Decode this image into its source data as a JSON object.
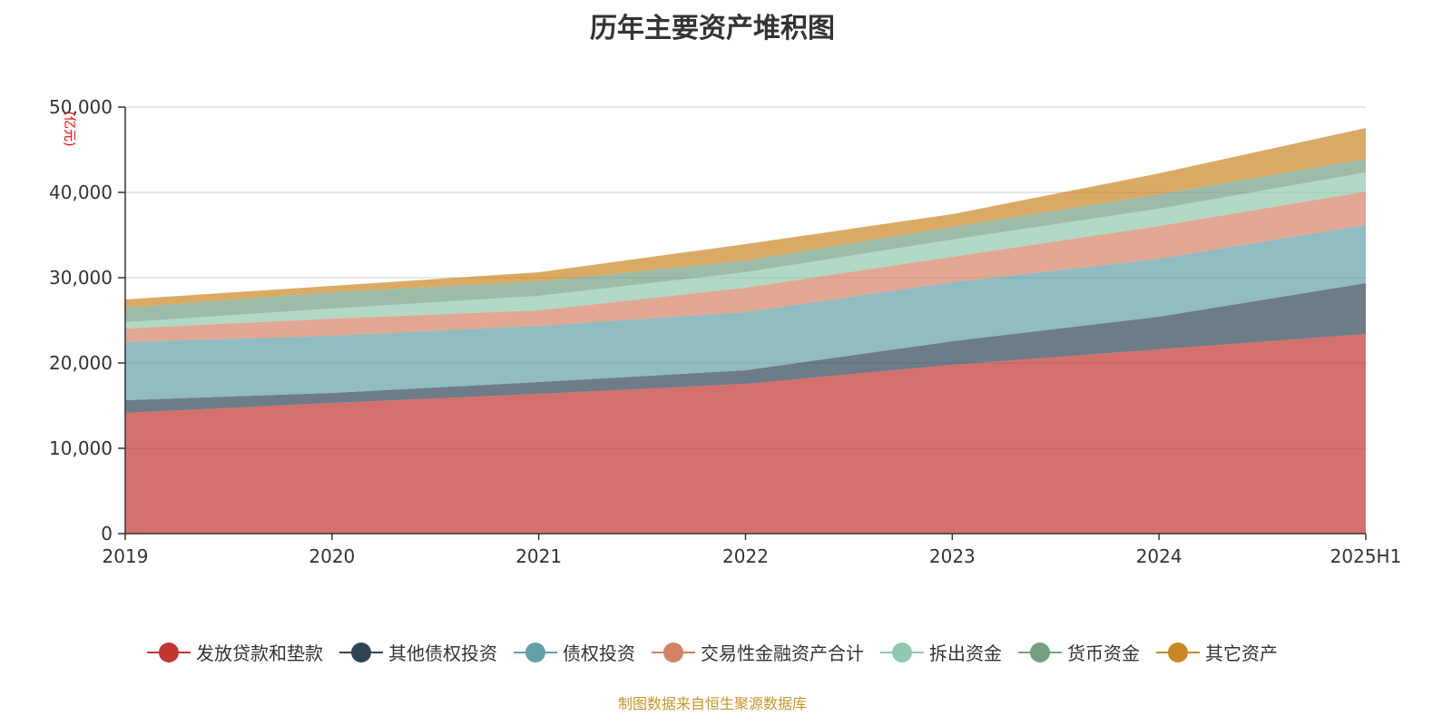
{
  "chart_data": {
    "type": "area",
    "stacked": true,
    "title": "历年主要资产堆积图",
    "ylabel": "(亿元)",
    "xlabel": "",
    "ylim": [
      0,
      50000
    ],
    "yticks": [
      "0",
      "10,000",
      "20,000",
      "30,000",
      "40,000",
      "50,000"
    ],
    "grid": true,
    "legend_position": "bottom",
    "categories": [
      "2019",
      "2020",
      "2021",
      "2022",
      "2023",
      "2024",
      "2025H1"
    ],
    "series": [
      {
        "name": "发放贷款和垫款",
        "color": "#c23531",
        "values": [
          14150,
          15320,
          16380,
          17550,
          19790,
          21600,
          23400
        ]
      },
      {
        "name": "其他债权投资",
        "color": "#2f4554",
        "values": [
          1490,
          1170,
          1390,
          1600,
          2760,
          3830,
          5960
        ]
      },
      {
        "name": "债权投资",
        "color": "#61a0a8",
        "values": [
          6810,
          6700,
          6590,
          6810,
          6920,
          6800,
          6810
        ]
      },
      {
        "name": "交易性金融资产合计",
        "color": "#d48265",
        "values": [
          1590,
          2010,
          1810,
          2870,
          2980,
          3830,
          3940
        ]
      },
      {
        "name": "拆出资金",
        "color": "#91c7ae",
        "values": [
          750,
          1180,
          1700,
          1810,
          2020,
          2030,
          2230
        ]
      },
      {
        "name": "货币资金",
        "color": "#749f83",
        "values": [
          1700,
          1920,
          1700,
          1380,
          1490,
          1700,
          1600
        ]
      },
      {
        "name": "其它资产",
        "color": "#ca8622",
        "values": [
          960,
          740,
          1070,
          1920,
          1490,
          2440,
          3610
        ]
      }
    ]
  },
  "source": "制图数据来自恒生聚源数据库"
}
